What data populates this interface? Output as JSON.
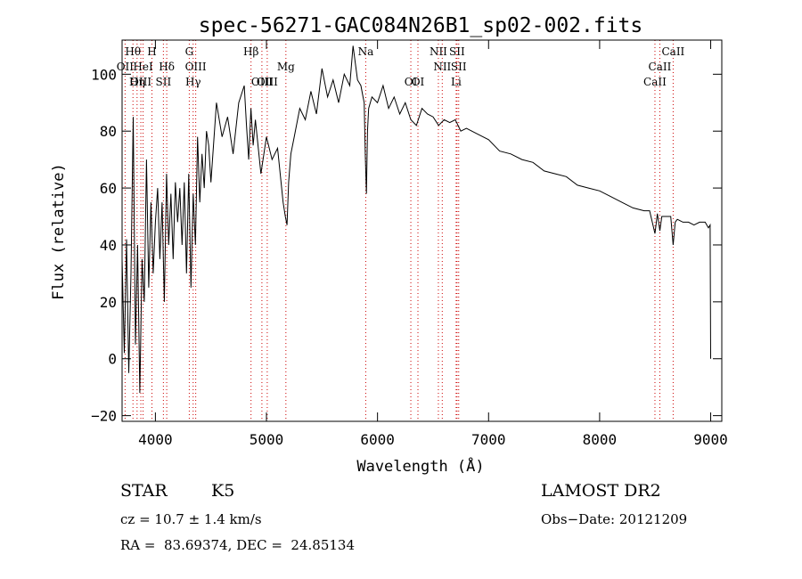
{
  "chart_data": {
    "type": "line",
    "title": "spec-56271-GAC084N26B1_sp02-002.fits",
    "xlabel": "Wavelength (Å)",
    "ylabel": "Flux (relative)",
    "xlim": [
      3700,
      9100
    ],
    "ylim": [
      -22,
      112
    ],
    "x_ticks": [
      4000,
      5000,
      6000,
      7000,
      8000,
      9000
    ],
    "y_ticks": [
      -20,
      0,
      20,
      40,
      60,
      80,
      100
    ],
    "x_tick_labels": [
      "4000",
      "5000",
      "6000",
      "7000",
      "8000",
      "9000"
    ],
    "y_tick_labels": [
      "−20",
      "0",
      "20",
      "40",
      "60",
      "80",
      "100"
    ],
    "grid": false,
    "line_color": "#000000",
    "marker_color": "#cc0000",
    "series": [
      {
        "x": [
          3700,
          3720,
          3740,
          3760,
          3780,
          3800,
          3820,
          3840,
          3860,
          3880,
          3900,
          3920,
          3940,
          3960,
          3980,
          4000,
          4020,
          4040,
          4060,
          4080,
          4100,
          4120,
          4140,
          4160,
          4180,
          4200,
          4220,
          4240,
          4260,
          4280,
          4300,
          4320,
          4340,
          4360,
          4380,
          4400,
          4420,
          4440,
          4460,
          4480,
          4500,
          4550,
          4600,
          4650,
          4700,
          4750,
          4800,
          4820,
          4840,
          4860,
          4880,
          4900,
          4950,
          5000,
          5050,
          5100,
          5150,
          5170,
          5185,
          5200,
          5220,
          5250,
          5300,
          5350,
          5400,
          5450,
          5500,
          5550,
          5600,
          5650,
          5700,
          5750,
          5780,
          5800,
          5820,
          5850,
          5870,
          5880,
          5890,
          5900,
          5910,
          5920,
          5950,
          6000,
          6050,
          6100,
          6150,
          6200,
          6250,
          6300,
          6350,
          6400,
          6450,
          6500,
          6550,
          6600,
          6650,
          6700,
          6750,
          6800,
          6900,
          7000,
          7100,
          7200,
          7300,
          7400,
          7500,
          7600,
          7700,
          7800,
          7900,
          8000,
          8100,
          8200,
          8300,
          8400,
          8450,
          8498,
          8520,
          8542,
          8560,
          8600,
          8640,
          8662,
          8680,
          8700,
          8750,
          8800,
          8850,
          8900,
          8950,
          8980,
          8995,
          9000
        ],
        "y": [
          35,
          2,
          42,
          -5,
          30,
          85,
          5,
          40,
          -12,
          35,
          20,
          70,
          25,
          55,
          30,
          48,
          60,
          35,
          55,
          20,
          65,
          40,
          58,
          35,
          62,
          48,
          60,
          40,
          62,
          30,
          65,
          25,
          58,
          40,
          78,
          55,
          72,
          60,
          80,
          75,
          62,
          90,
          78,
          85,
          72,
          90,
          96,
          82,
          70,
          88,
          75,
          84,
          65,
          78,
          70,
          74,
          55,
          50,
          47,
          62,
          72,
          78,
          88,
          84,
          94,
          86,
          102,
          92,
          98,
          90,
          100,
          96,
          110,
          104,
          98,
          96,
          92,
          90,
          72,
          58,
          80,
          88,
          92,
          90,
          96,
          88,
          92,
          86,
          90,
          84,
          82,
          88,
          86,
          85,
          82,
          84,
          83,
          84,
          80,
          81,
          79,
          77,
          73,
          72,
          70,
          69,
          66,
          65,
          64,
          61,
          60,
          59,
          57,
          55,
          53,
          52,
          52,
          44,
          51,
          45,
          50,
          50,
          50,
          40,
          48,
          49,
          48,
          48,
          47,
          48,
          48,
          46,
          47,
          0
        ]
      }
    ],
    "line_markers": [
      {
        "label": "Hθ",
        "x": 3798,
        "row": 1
      },
      {
        "label": "OII",
        "x": 3727,
        "row": 2
      },
      {
        "label": "OIII",
        "x": 3869,
        "row": 3
      },
      {
        "label": "Hη",
        "x": 3835,
        "row": 3
      },
      {
        "label": "H",
        "x": 3969,
        "row": 1
      },
      {
        "label": "HeI",
        "x": 3889,
        "row": 2
      },
      {
        "label": "Hδ",
        "x": 4102,
        "row": 2
      },
      {
        "label": "SII",
        "x": 4072,
        "row": 3
      },
      {
        "label": "G",
        "x": 4305,
        "row": 1
      },
      {
        "label": "OIII",
        "x": 4363,
        "row": 2
      },
      {
        "label": "Hγ",
        "x": 4340,
        "row": 3
      },
      {
        "label": "Hβ",
        "x": 4861,
        "row": 1
      },
      {
        "label": "OIII",
        "x": 4959,
        "row": 3
      },
      {
        "label": "OIII",
        "x": 5007,
        "row": 3
      },
      {
        "label": "Mg",
        "x": 5175,
        "row": 2
      },
      {
        "label": "Na",
        "x": 5894,
        "row": 1
      },
      {
        "label": "OI",
        "x": 6300,
        "row": 3
      },
      {
        "label": "OI",
        "x": 6364,
        "row": 3
      },
      {
        "label": "NII",
        "x": 6548,
        "row": 1
      },
      {
        "label": "NII",
        "x": 6583,
        "row": 2
      },
      {
        "label": "SII",
        "x": 6716,
        "row": 1
      },
      {
        "label": "SII",
        "x": 6731,
        "row": 2
      },
      {
        "label": "Li",
        "x": 6708,
        "row": 3
      },
      {
        "label": "CaII",
        "x": 8498,
        "row": 3
      },
      {
        "label": "CaII",
        "x": 8542,
        "row": 2
      },
      {
        "label": "CaII",
        "x": 8662,
        "row": 1
      }
    ]
  },
  "info": {
    "object_type": "STAR",
    "subclass": "K5",
    "survey": "LAMOST DR2",
    "redshift": "cz = 10.7 ± 1.4 km/s",
    "obs_date": "Obs−Date: 20121209",
    "coords": "RA =  83.69374, DEC =  24.85134"
  }
}
